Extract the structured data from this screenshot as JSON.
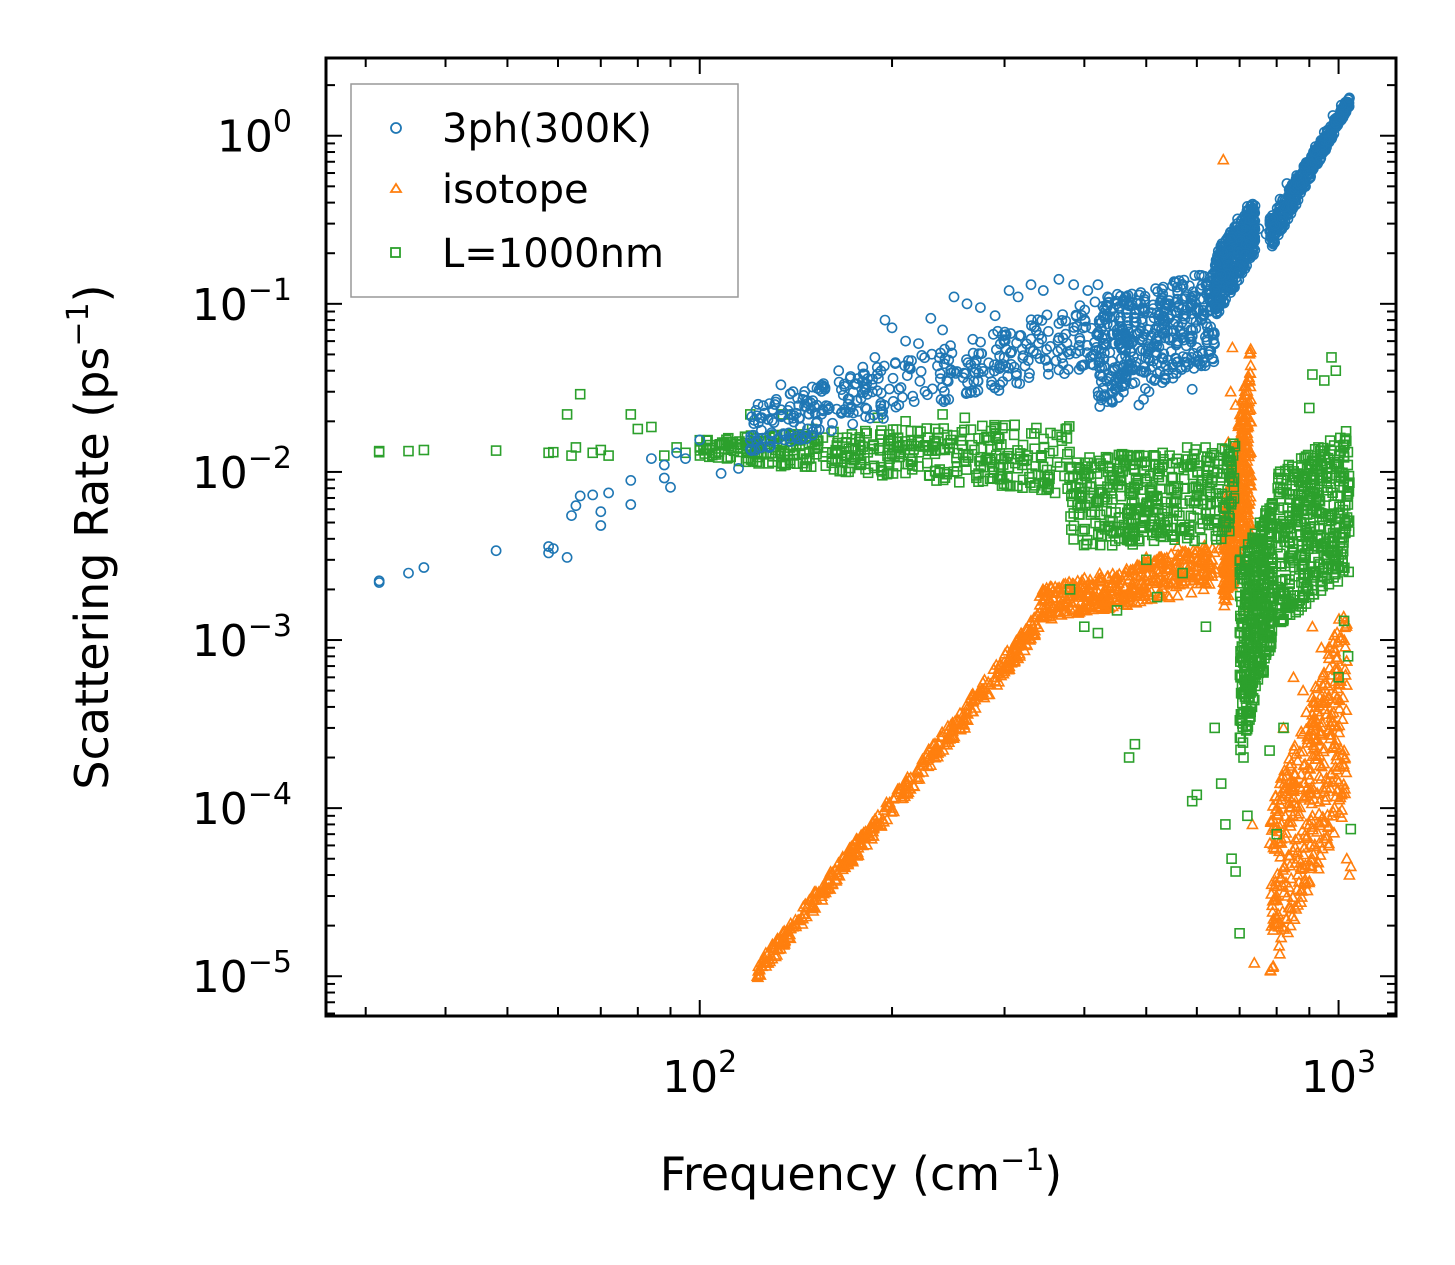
{
  "chart_data": {
    "type": "scatter",
    "xscale": "log",
    "yscale": "log",
    "xlabel": "Frequency (cm",
    "xlabel_sup": "−1",
    "xlabel_end": ")",
    "ylabel": "Scattering Rate (ps",
    "ylabel_sup": "−1",
    "ylabel_end": ")",
    "xlim": [
      26,
      1230
    ],
    "ylim": [
      5.8e-06,
      2.9
    ],
    "x_ticks": [
      {
        "value": 100,
        "base": "10",
        "exp": "2"
      },
      {
        "value": 1000,
        "base": "10",
        "exp": "3"
      }
    ],
    "y_ticks": [
      {
        "value": 1,
        "base": "10",
        "exp": "0"
      },
      {
        "value": 0.1,
        "base": "10",
        "exp": "−1"
      },
      {
        "value": 0.01,
        "base": "10",
        "exp": "−2"
      },
      {
        "value": 0.001,
        "base": "10",
        "exp": "−3"
      },
      {
        "value": 0.0001,
        "base": "10",
        "exp": "−4"
      },
      {
        "value": 1e-05,
        "base": "10",
        "exp": "−5"
      }
    ],
    "legend_position": "top-left",
    "series": [
      {
        "name": "3ph(300K)",
        "marker": "circle",
        "color": "#1f77b4",
        "points": [
          [
            31.5,
            0.0022
          ],
          [
            31.5,
            0.00225
          ],
          [
            35,
            0.0025
          ],
          [
            37,
            0.0027
          ],
          [
            48,
            0.0034
          ],
          [
            58,
            0.0036
          ],
          [
            59,
            0.0035
          ],
          [
            58,
            0.0033
          ],
          [
            62,
            0.0031
          ],
          [
            63,
            0.0055
          ],
          [
            64,
            0.0063
          ],
          [
            65,
            0.0072
          ],
          [
            68,
            0.0073
          ],
          [
            70,
            0.0048
          ],
          [
            70,
            0.0058
          ],
          [
            72,
            0.0075
          ],
          [
            78,
            0.0089
          ],
          [
            78,
            0.0064
          ],
          [
            84,
            0.012
          ],
          [
            88,
            0.011
          ],
          [
            88,
            0.0092
          ],
          [
            90,
            0.0081
          ],
          [
            92,
            0.013
          ],
          [
            95,
            0.012
          ],
          [
            100,
            0.0155
          ],
          [
            108,
            0.0098
          ],
          [
            115,
            0.0105
          ],
          [
            120,
            0.0155
          ],
          [
            125,
            0.021
          ],
          [
            130,
            0.0235
          ],
          [
            134,
            0.033
          ],
          [
            140,
            0.03
          ],
          [
            145,
            0.027
          ],
          [
            150,
            0.032
          ],
          [
            157,
            0.031
          ],
          [
            165,
            0.04
          ],
          [
            172,
            0.036
          ],
          [
            180,
            0.042
          ],
          [
            188,
            0.048
          ],
          [
            195,
            0.08
          ],
          [
            200,
            0.072
          ],
          [
            210,
            0.06
          ],
          [
            220,
            0.058
          ],
          [
            230,
            0.082
          ],
          [
            240,
            0.07
          ],
          [
            250,
            0.11
          ],
          [
            262,
            0.1
          ],
          [
            275,
            0.095
          ],
          [
            290,
            0.085
          ],
          [
            305,
            0.12
          ],
          [
            315,
            0.11
          ],
          [
            330,
            0.13
          ],
          [
            345,
            0.12
          ],
          [
            365,
            0.14
          ],
          [
            385,
            0.13
          ],
          [
            405,
            0.12
          ],
          [
            420,
            0.13
          ],
          [
            435,
            0.11
          ],
          [
            440,
            0.09
          ],
          [
            450,
            0.07
          ],
          [
            460,
            0.055
          ],
          [
            470,
            0.043
          ],
          [
            480,
            0.034
          ],
          [
            487,
            0.025
          ],
          [
            495,
            0.027
          ],
          [
            505,
            0.03
          ],
          [
            515,
            0.035
          ],
          [
            530,
            0.034
          ],
          [
            550,
            0.042
          ],
          [
            560,
            0.06
          ],
          [
            575,
            0.045
          ],
          [
            590,
            0.031
          ],
          [
            600,
            0.055
          ],
          [
            610,
            0.08
          ],
          [
            620,
            0.13
          ],
          [
            640,
            0.12
          ],
          [
            650,
            0.09
          ],
          [
            660,
            0.2
          ],
          [
            670,
            0.17
          ],
          [
            680,
            0.25
          ],
          [
            695,
            0.32
          ],
          [
            705,
            0.28
          ],
          [
            720,
            0.38
          ],
          [
            735,
            0.32
          ],
          [
            750,
            0.28
          ],
          [
            770,
            0.26
          ],
          [
            790,
            0.32
          ],
          [
            810,
            0.42
          ],
          [
            830,
            0.52
          ],
          [
            860,
            0.58
          ],
          [
            890,
            0.68
          ],
          [
            920,
            0.86
          ],
          [
            950,
            1.05
          ],
          [
            980,
            1.32
          ],
          [
            1010,
            1.52
          ],
          [
            1040,
            1.68
          ]
        ],
        "bands": [
          {
            "x_range": [
              120,
              500
            ],
            "y_low": [
              0.013,
              0.05
            ],
            "y_high": [
              0.025,
              0.13
            ]
          },
          {
            "x_range": [
              420,
              640
            ],
            "y_low": [
              0.024,
              0.045
            ],
            "y_high": [
              0.1,
              0.16
            ]
          },
          {
            "x_range": [
              640,
              740
            ],
            "y_low": [
              0.08,
              0.2
            ],
            "y_high": [
              0.2,
              0.42
            ]
          },
          {
            "x_range": [
              780,
              1040
            ],
            "y_low": [
              0.2,
              1.5
            ],
            "y_high": [
              0.32,
              1.72
            ]
          }
        ]
      },
      {
        "name": "isotope",
        "marker": "triangle",
        "color": "#ff7f0e",
        "points": [
          [
            123,
            1e-05
          ],
          [
            127,
            1.15e-05
          ],
          [
            135,
            1.6e-05
          ],
          [
            145,
            2.2e-05
          ],
          [
            160,
            3.3e-05
          ],
          [
            180,
            6e-05
          ],
          [
            200,
            0.0001
          ],
          [
            230,
            0.00018
          ],
          [
            260,
            0.0003
          ],
          [
            300,
            0.0007
          ],
          [
            330,
            0.0013
          ],
          [
            360,
            0.0019
          ],
          [
            400,
            0.0018
          ],
          [
            450,
            0.0024
          ],
          [
            500,
            0.0031
          ],
          [
            560,
            0.0036
          ],
          [
            620,
            0.0022
          ],
          [
            650,
            0.0035
          ],
          [
            660,
            0.72
          ],
          [
            668,
            0.0057
          ],
          [
            672,
            0.015
          ],
          [
            678,
            0.03
          ],
          [
            682,
            0.055
          ],
          [
            690,
            0.025
          ],
          [
            700,
            0.01
          ],
          [
            712,
            0.0045
          ],
          [
            722,
            0.0015
          ],
          [
            733,
            8e-05
          ],
          [
            738,
            1.2e-05
          ],
          [
            790,
            1.15e-05
          ],
          [
            800,
            3e-05
          ],
          [
            820,
            0.0003
          ],
          [
            850,
            0.0006
          ],
          [
            880,
            0.0005
          ],
          [
            910,
            0.0012
          ],
          [
            940,
            0.0009
          ],
          [
            975,
            0.00062
          ],
          [
            1000,
            0.00055
          ],
          [
            1020,
            0.00022
          ],
          [
            1030,
            5e-05
          ],
          [
            1040,
            4e-05
          ],
          [
            1045,
            4.5e-05
          ]
        ],
        "bands": [
          {
            "x_range": [
              123,
              340
            ],
            "y_low": [
              9.5e-06,
              0.0011
            ],
            "y_high": [
              1.2e-05,
              0.0015
            ]
          },
          {
            "x_range": [
              340,
              640
            ],
            "y_low": [
              0.0013,
              0.002
            ],
            "y_high": [
              0.002,
              0.0038
            ]
          },
          {
            "x_range": [
              660,
              730
            ],
            "y_low": [
              0.0015,
              0.004
            ],
            "y_high": [
              0.005,
              0.06
            ]
          },
          {
            "x_range": [
              780,
              1030
            ],
            "y_low": [
              1e-05,
              0.0001
            ],
            "y_high": [
              0.0001,
              0.0018
            ]
          }
        ]
      },
      {
        "name": "L=1000nm",
        "marker": "square",
        "color": "#2ca02c",
        "points": [
          [
            31.5,
            0.0133
          ],
          [
            31.5,
            0.0131
          ],
          [
            35,
            0.0133
          ],
          [
            37,
            0.0135
          ],
          [
            48,
            0.0134
          ],
          [
            58,
            0.013
          ],
          [
            59,
            0.0131
          ],
          [
            62,
            0.022
          ],
          [
            63,
            0.0125
          ],
          [
            64,
            0.014
          ],
          [
            65,
            0.029
          ],
          [
            68,
            0.013
          ],
          [
            70,
            0.0135
          ],
          [
            72,
            0.0125
          ],
          [
            78,
            0.022
          ],
          [
            80,
            0.018
          ],
          [
            84,
            0.0185
          ],
          [
            88,
            0.0125
          ],
          [
            92,
            0.014
          ],
          [
            95,
            0.013
          ],
          [
            100,
            0.014
          ],
          [
            110,
            0.0145
          ],
          [
            120,
            0.022
          ],
          [
            125,
            0.013
          ],
          [
            135,
            0.022
          ],
          [
            150,
            0.018
          ],
          [
            170,
            0.016
          ],
          [
            190,
            0.021
          ],
          [
            210,
            0.02
          ],
          [
            240,
            0.022
          ],
          [
            260,
            0.021
          ],
          [
            290,
            0.018
          ],
          [
            320,
            0.011
          ],
          [
            360,
            0.0075
          ],
          [
            380,
            0.002
          ],
          [
            400,
            0.0012
          ],
          [
            420,
            0.0011
          ],
          [
            450,
            0.0015
          ],
          [
            470,
            0.0002
          ],
          [
            480,
            0.00024
          ],
          [
            500,
            0.003
          ],
          [
            520,
            0.0018
          ],
          [
            540,
            0.0045
          ],
          [
            570,
            0.0025
          ],
          [
            590,
            0.00011
          ],
          [
            600,
            0.00012
          ],
          [
            620,
            0.0012
          ],
          [
            640,
            0.0003
          ],
          [
            655,
            0.00014
          ],
          [
            665,
            8e-05
          ],
          [
            680,
            5e-05
          ],
          [
            690,
            4.2e-05
          ],
          [
            700,
            1.8e-05
          ],
          [
            710,
            0.0002
          ],
          [
            720,
            9e-05
          ],
          [
            735,
            0.0014
          ],
          [
            760,
            0.001
          ],
          [
            780,
            0.00022
          ],
          [
            800,
            7e-05
          ],
          [
            820,
            0.0003
          ],
          [
            850,
            0.0016
          ],
          [
            880,
            0.0028
          ],
          [
            900,
            0.024
          ],
          [
            910,
            0.038
          ],
          [
            930,
            0.014
          ],
          [
            950,
            0.035
          ],
          [
            975,
            0.048
          ],
          [
            990,
            0.04
          ],
          [
            1000,
            0.0006
          ],
          [
            1020,
            0.0013
          ],
          [
            1035,
            0.0008
          ],
          [
            1045,
            7.5e-05
          ]
        ],
        "bands": [
          {
            "x_range": [
              100,
              380
            ],
            "y_low": [
              0.012,
              0.0075
            ],
            "y_high": [
              0.016,
              0.02
            ]
          },
          {
            "x_range": [
              380,
              690
            ],
            "y_low": [
              0.0035,
              0.004
            ],
            "y_high": [
              0.012,
              0.015
            ]
          },
          {
            "x_range": [
              700,
              790
            ],
            "y_low": [
              0.0002,
              0.001
            ],
            "y_high": [
              0.003,
              0.007
            ]
          },
          {
            "x_range": [
              800,
              1040
            ],
            "y_low": [
              0.0012,
              0.0025
            ],
            "y_high": [
              0.01,
              0.018
            ]
          }
        ]
      }
    ]
  }
}
